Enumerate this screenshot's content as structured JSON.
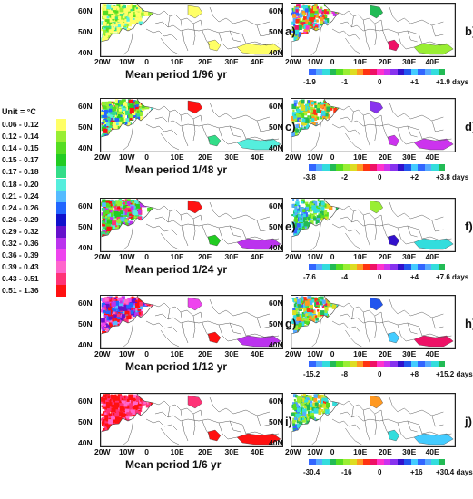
{
  "legend": {
    "unit_title": "Unit = °C",
    "items": [
      {
        "label": "0.06  -  0.12",
        "color": "#ffff66"
      },
      {
        "label": "0.12  -  0.14",
        "color": "#99ee33"
      },
      {
        "label": "0.14  -  0.15",
        "color": "#55dd22"
      },
      {
        "label": "0.15  -  0.17",
        "color": "#22cc22"
      },
      {
        "label": "0.17  -  0.18",
        "color": "#33dd88"
      },
      {
        "label": "0.18  -  0.20",
        "color": "#55eedd"
      },
      {
        "label": "0.21  -  0.24",
        "color": "#55bbff"
      },
      {
        "label": "0.24  -  0.26",
        "color": "#2266ff"
      },
      {
        "label": "0.26  -  0.29",
        "color": "#1111cc"
      },
      {
        "label": "0.29  -  0.32",
        "color": "#6611cc"
      },
      {
        "label": "0.32  -  0.36",
        "color": "#bb33ee"
      },
      {
        "label": "0.36  -  0.39",
        "color": "#ee44ee"
      },
      {
        "label": "0.39  -  0.43",
        "color": "#ff66cc"
      },
      {
        "label": "0.43  -  0.51",
        "color": "#ff3377"
      },
      {
        "label": "0.51  -  1.36",
        "color": "#ff1111"
      }
    ]
  },
  "axes": {
    "lat_ticks": [
      "60N",
      "50N",
      "40N"
    ],
    "lon_ticks": [
      "20W",
      "10W",
      "0",
      "10E",
      "20E",
      "30E",
      "40E"
    ]
  },
  "phase_palette": [
    "#3366ff",
    "#55aaff",
    "#33dddd",
    "#22bb55",
    "#55dd22",
    "#99ee33",
    "#dddd22",
    "#ff9922",
    "#ff3311",
    "#ee1166",
    "#ff33cc",
    "#cc33ee",
    "#8833ee",
    "#3311cc",
    "#2255ee",
    "#44ccff"
  ],
  "rows": [
    {
      "left_label": "a)",
      "right_label": "b)",
      "subtitle": "Mean period 1/96 yr",
      "scale_labels": [
        "-1.9",
        "-1",
        "0",
        "+1",
        "+1.9 days"
      ],
      "amp_palette": [
        "#ffff66",
        "#ffff66",
        "#ffff66",
        "#ffff66",
        "#99ee33",
        "#55dd22",
        "#ffff66",
        "#55eedd",
        "#33dd88"
      ],
      "phase_spread": 0.35
    },
    {
      "left_label": "c)",
      "right_label": "d)",
      "subtitle": "Mean period 1/48 yr",
      "scale_labels": [
        "-3.8",
        "-2",
        "0",
        "+2",
        "+3.8 days"
      ],
      "amp_palette": [
        "#ffff66",
        "#99ee33",
        "#55dd22",
        "#22cc22",
        "#33dd88",
        "#55eedd",
        "#ffff66",
        "#2266ff",
        "#ff1111"
      ],
      "phase_spread": 0.55
    },
    {
      "left_label": "e)",
      "right_label": "f)",
      "subtitle": "Mean period 1/24 yr",
      "scale_labels": [
        "-7.6",
        "-4",
        "0",
        "+4",
        "+7.6 days"
      ],
      "amp_palette": [
        "#99ee33",
        "#55dd22",
        "#22cc22",
        "#33dd88",
        "#55eedd",
        "#55bbff",
        "#ff1111",
        "#ff3377",
        "#bb33ee"
      ],
      "phase_spread": 0.7
    },
    {
      "left_label": "g)",
      "right_label": "h)",
      "subtitle": "Mean period 1/12 yr",
      "scale_labels": [
        "-15.2",
        "-8",
        "0",
        "+8",
        "+15.2 days"
      ],
      "amp_palette": [
        "#55bbff",
        "#2266ff",
        "#6611cc",
        "#bb33ee",
        "#ee44ee",
        "#ff66cc",
        "#ff3377",
        "#ff1111",
        "#ff1111"
      ],
      "phase_spread": 0.5
    },
    {
      "left_label": "i)",
      "right_label": "j)",
      "subtitle": "Mean period 1/6 yr",
      "scale_labels": [
        "-30.4",
        "-16",
        "0",
        "+16",
        "+30.4 days"
      ],
      "amp_palette": [
        "#ff1111",
        "#ff1111",
        "#ff3377",
        "#ff1111",
        "#ff66cc",
        "#ff3377",
        "#ff1111",
        "#ff1111",
        "#ff3377"
      ],
      "phase_spread": 0.6
    }
  ]
}
